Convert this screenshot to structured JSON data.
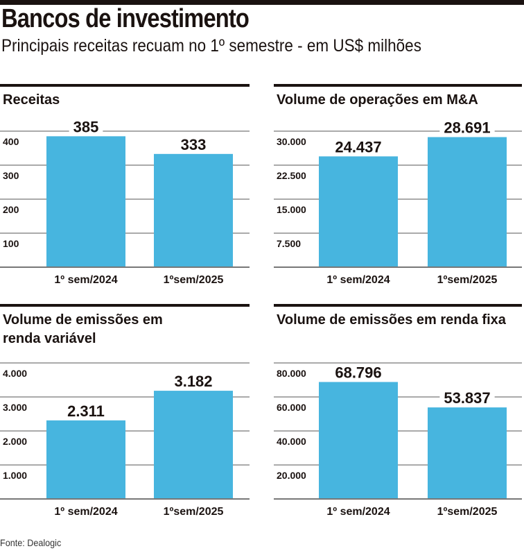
{
  "title": "Bancos de investimento",
  "subtitle": "Principais receitas recuam no 1º semestre - em US$ milhões",
  "source": "Fonte: Dealogic",
  "chart_data": [
    {
      "type": "bar",
      "title": [
        "Receitas"
      ],
      "categories": [
        "1º sem/2024",
        "1ºsem/2025"
      ],
      "values": [
        385,
        333
      ],
      "value_labels": [
        "385",
        "333"
      ],
      "ylim": [
        0,
        400
      ],
      "ticks": [
        100,
        200,
        300,
        400
      ],
      "tick_labels": [
        "100",
        "200",
        "300",
        "400"
      ],
      "grid": true,
      "color": "#47b5df"
    },
    {
      "type": "bar",
      "title": [
        "Volume de operações em M&A"
      ],
      "categories": [
        "1º sem/2024",
        "1ºsem/2025"
      ],
      "values": [
        24437,
        28691
      ],
      "value_labels": [
        "24.437",
        "28.691"
      ],
      "ylim": [
        0,
        30000
      ],
      "ticks": [
        7500,
        15000,
        22500,
        30000
      ],
      "tick_labels": [
        "7.500",
        "15.000",
        "22.500",
        "30.000"
      ],
      "grid": true,
      "color": "#47b5df"
    },
    {
      "type": "bar",
      "title": [
        "Volume de emissões em",
        "renda variável"
      ],
      "categories": [
        "1º sem/2024",
        "1ºsem/2025"
      ],
      "values": [
        2311,
        3182
      ],
      "value_labels": [
        "2.311",
        "3.182"
      ],
      "ylim": [
        0,
        4000
      ],
      "ticks": [
        1000,
        2000,
        3000,
        4000
      ],
      "tick_labels": [
        "1.000",
        "2.000",
        "3.000",
        "4.000"
      ],
      "grid": true,
      "color": "#47b5df"
    },
    {
      "type": "bar",
      "title": [
        "Volume de emissões em renda fixa"
      ],
      "categories": [
        "1º sem/2024",
        "1ºsem/2025"
      ],
      "values": [
        68796,
        53837
      ],
      "value_labels": [
        "68.796",
        "53.837"
      ],
      "ylim": [
        0,
        80000
      ],
      "ticks": [
        20000,
        40000,
        60000,
        80000
      ],
      "tick_labels": [
        "20.000",
        "40.000",
        "60.000",
        "80.000"
      ],
      "grid": true,
      "color": "#47b5df"
    }
  ]
}
